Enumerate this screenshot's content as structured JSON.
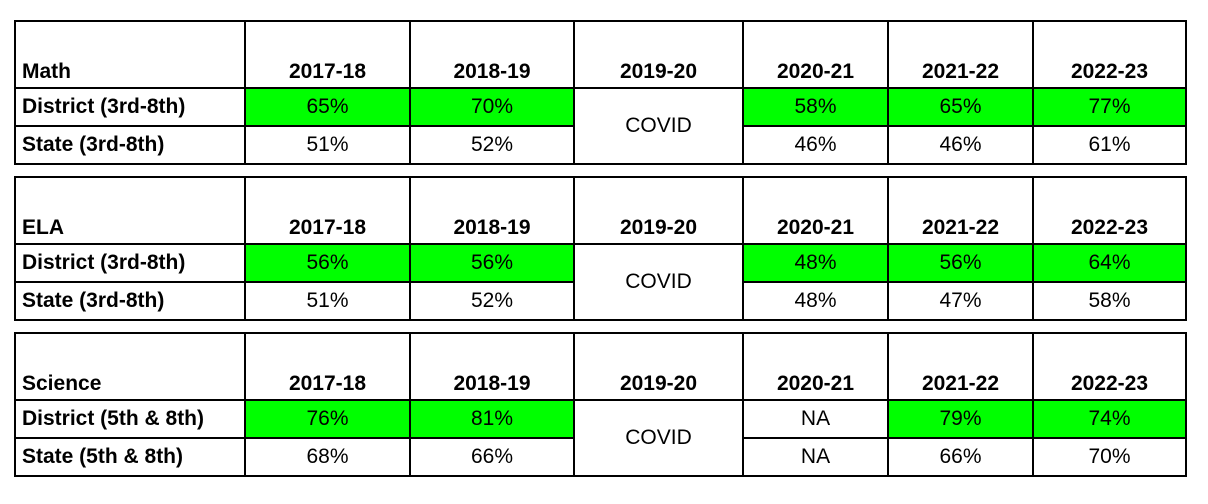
{
  "years": [
    "2017-18",
    "2018-19",
    "2019-20",
    "2020-21",
    "2021-22",
    "2022-23"
  ],
  "colors": {
    "highlight": "#00ff00",
    "border": "#000000"
  },
  "tables": [
    {
      "subject": "Math",
      "district": {
        "label": "District (3rd-8th)",
        "values": [
          "65%",
          "70%",
          "58%",
          "65%",
          "77%"
        ]
      },
      "state": {
        "label": "State (3rd-8th)",
        "values": [
          "51%",
          "52%",
          "46%",
          "46%",
          "61%"
        ]
      },
      "covid": "COVID"
    },
    {
      "subject": "ELA",
      "district": {
        "label": "District (3rd-8th)",
        "values": [
          "56%",
          "56%",
          "48%",
          "56%",
          "64%"
        ]
      },
      "state": {
        "label": "State (3rd-8th)",
        "values": [
          "51%",
          "52%",
          "48%",
          "47%",
          "58%"
        ]
      },
      "covid": "COVID"
    },
    {
      "subject": "Science",
      "district": {
        "label": "District (5th & 8th)",
        "values": [
          "76%",
          "81%",
          "NA",
          "79%",
          "74%"
        ]
      },
      "state": {
        "label": "State (5th & 8th)",
        "values": [
          "68%",
          "66%",
          "NA",
          "66%",
          "70%"
        ]
      },
      "covid": "COVID"
    }
  ]
}
